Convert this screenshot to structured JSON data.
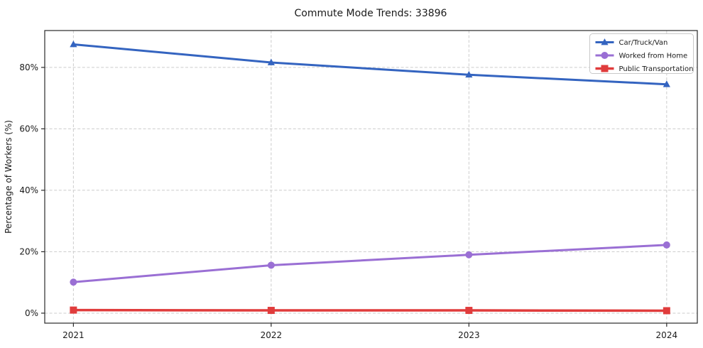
{
  "chart_data": {
    "type": "line",
    "title": "Commute Mode Trends: 33896",
    "xlabel": "",
    "ylabel": "Percentage of Workers (%)",
    "categories": [
      2021,
      2022,
      2023,
      2024
    ],
    "x_tick_labels": [
      "2021",
      "2022",
      "2023",
      "2024"
    ],
    "y_ticks": [
      0,
      20,
      40,
      60,
      80
    ],
    "y_tick_labels": [
      "0%",
      "20%",
      "40%",
      "60%",
      "80%"
    ],
    "xlim": [
      2020.855,
      2024.155
    ],
    "ylim": [
      -3.25,
      92.0
    ],
    "grid": true,
    "grid_style": "dashed",
    "legend_position": "upper right",
    "series": [
      {
        "name": "Car/Truck/Van",
        "marker": "triangle",
        "color": "#3464c0",
        "line_width": 3,
        "values": [
          87.5,
          81.6,
          77.6,
          74.5
        ]
      },
      {
        "name": "Worked from Home",
        "marker": "circle",
        "color": "#9a6fd4",
        "line_width": 3,
        "values": [
          10.1,
          15.6,
          19.0,
          22.2
        ]
      },
      {
        "name": "Public Transportation",
        "marker": "square",
        "color": "#e03c3c",
        "line_width": 3.5,
        "values": [
          1.0,
          0.9,
          0.9,
          0.8
        ]
      }
    ],
    "colors": {
      "grid": "#cccccc",
      "spine": "#2a2a2a",
      "text": "#1a1a1a",
      "legend_border": "#c9c9c9",
      "background": "#ffffff"
    }
  }
}
